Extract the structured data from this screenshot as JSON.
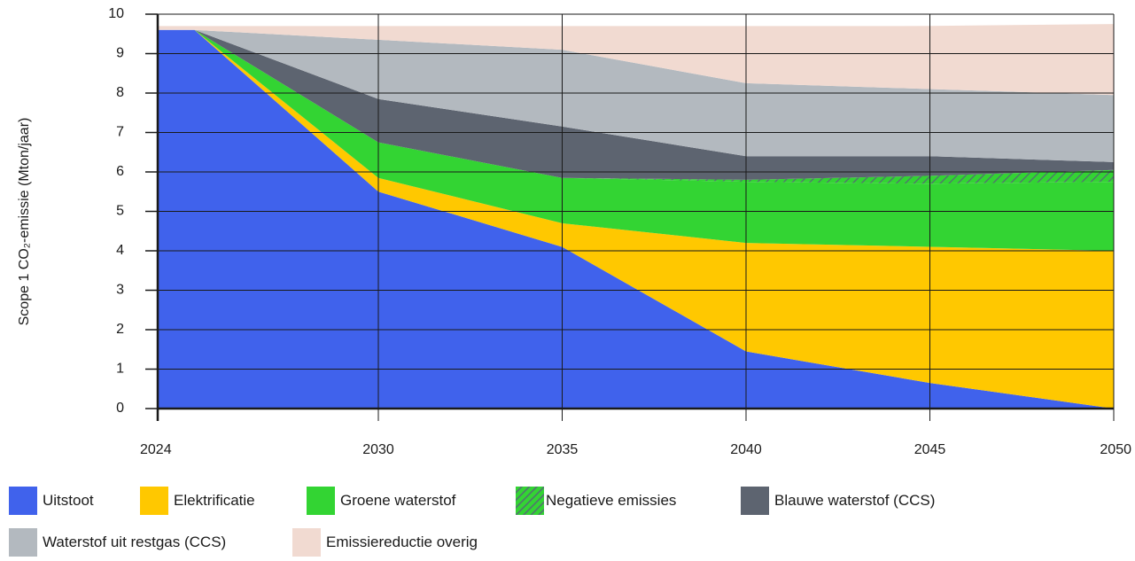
{
  "chart_data": {
    "type": "area",
    "ylabel": "Scope 1 CO₂-emissie (Mton/jaar)",
    "x": [
      2024,
      2025,
      2030,
      2035,
      2040,
      2045,
      2050
    ],
    "xticks": [
      2024,
      2030,
      2035,
      2040,
      2045,
      2050
    ],
    "yticks": [
      0,
      1,
      2,
      3,
      4,
      5,
      6,
      7,
      8,
      9,
      10
    ],
    "xlim": [
      2024,
      2050
    ],
    "ylim": [
      0,
      10
    ],
    "grid": true,
    "legend_position": "bottom",
    "series": [
      {
        "name": "Uitstoot",
        "color": "#4062ec",
        "values": [
          9.6,
          9.6,
          5.5,
          4.1,
          1.45,
          0.65,
          0.0
        ]
      },
      {
        "name": "Elektrificatie",
        "color": "#ffc800",
        "values": [
          0.0,
          0.0,
          0.35,
          0.6,
          2.75,
          3.45,
          4.0
        ]
      },
      {
        "name": "Groene waterstof",
        "color": "#33d433",
        "values": [
          0.0,
          0.0,
          0.9,
          1.15,
          1.55,
          1.6,
          1.75
        ]
      },
      {
        "name": "Negatieve emissies",
        "color": "#33d433",
        "pattern": "hatched",
        "values": [
          0.0,
          0.0,
          0.0,
          0.0,
          0.05,
          0.2,
          0.3
        ]
      },
      {
        "name": "Blauwe waterstof (CCS)",
        "color": "#5d6470",
        "values": [
          0.0,
          0.0,
          1.1,
          1.3,
          0.6,
          0.5,
          0.2
        ]
      },
      {
        "name": "Waterstof uit restgas (CCS)",
        "color": "#b3b9bf",
        "values": [
          0.0,
          0.0,
          1.5,
          1.95,
          1.85,
          1.7,
          1.7
        ]
      },
      {
        "name": "Emissiereductie overig",
        "color": "#f1dad1",
        "values": [
          0.1,
          0.1,
          0.35,
          0.6,
          1.45,
          1.6,
          1.8
        ]
      }
    ]
  },
  "legend": [
    {
      "label": "Uitstoot",
      "color": "#4062ec",
      "icon": "solid-square-swatch"
    },
    {
      "label": "Elektrificatie",
      "color": "#ffc800",
      "icon": "solid-square-swatch"
    },
    {
      "label": "Groene waterstof",
      "color": "#33d433",
      "icon": "solid-square-swatch"
    },
    {
      "label": "Negatieve emissies",
      "color": "#33d433",
      "icon": "hatched-square-swatch"
    },
    {
      "label": "Blauwe waterstof (CCS)",
      "color": "#5d6470",
      "icon": "solid-square-swatch"
    },
    {
      "label": "Waterstof uit restgas (CCS)",
      "color": "#b3b9bf",
      "icon": "solid-square-swatch"
    },
    {
      "label": "Emissiereductie overig",
      "color": "#f1dad1",
      "icon": "solid-square-swatch"
    }
  ]
}
